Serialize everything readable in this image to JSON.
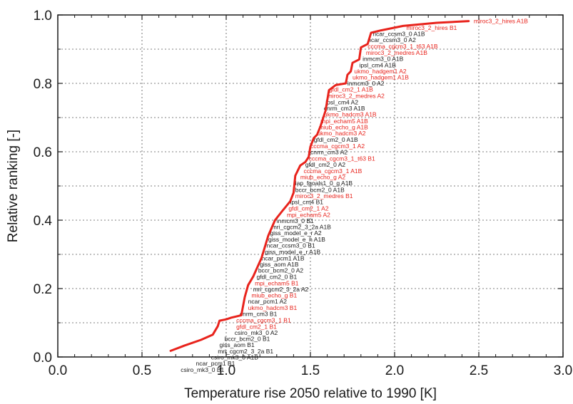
{
  "chart_data": {
    "type": "line",
    "title": "",
    "xlabel": "Temperature rise 2050 relative to 1990 [K]",
    "ylabel": "Relative ranking [-]",
    "xlim": [
      0.0,
      3.0
    ],
    "ylim": [
      0.0,
      1.0
    ],
    "x_ticks": [
      "0.0",
      "0.5",
      "1.0",
      "1.5",
      "2.0",
      "2.5",
      "3.0"
    ],
    "y_ticks": [
      "0.0",
      "0.2",
      "0.4",
      "0.6",
      "0.8",
      "1.0"
    ],
    "grid": true,
    "line_color": "#e8231c",
    "series": [
      {
        "values": [
          [
            0.67,
            0.018
          ],
          [
            0.75,
            0.033
          ],
          [
            0.85,
            0.05
          ],
          [
            0.92,
            0.065
          ],
          [
            0.95,
            0.09
          ],
          [
            0.96,
            0.106
          ],
          [
            1.0,
            0.11
          ],
          [
            1.03,
            0.115
          ],
          [
            1.09,
            0.122
          ],
          [
            1.11,
            0.175
          ],
          [
            1.13,
            0.21
          ],
          [
            1.16,
            0.235
          ],
          [
            1.21,
            0.29
          ],
          [
            1.25,
            0.355
          ],
          [
            1.29,
            0.4
          ],
          [
            1.33,
            0.425
          ],
          [
            1.38,
            0.455
          ],
          [
            1.4,
            0.48
          ],
          [
            1.41,
            0.53
          ],
          [
            1.44,
            0.56
          ],
          [
            1.47,
            0.57
          ],
          [
            1.49,
            0.585
          ],
          [
            1.5,
            0.615
          ],
          [
            1.52,
            0.64
          ],
          [
            1.54,
            0.65
          ],
          [
            1.56,
            0.675
          ],
          [
            1.59,
            0.72
          ],
          [
            1.61,
            0.78
          ],
          [
            1.65,
            0.795
          ],
          [
            1.71,
            0.8
          ],
          [
            1.72,
            0.825
          ],
          [
            1.74,
            0.835
          ],
          [
            1.75,
            0.86
          ],
          [
            1.79,
            0.87
          ],
          [
            1.8,
            0.905
          ],
          [
            1.84,
            0.915
          ],
          [
            1.86,
            0.948
          ],
          [
            1.92,
            0.955
          ],
          [
            2.05,
            0.968
          ],
          [
            2.25,
            0.977
          ],
          [
            2.44,
            0.982
          ]
        ]
      }
    ],
    "annotations": [
      {
        "text": "miroc3_2_hires A1B",
        "x": 2.47,
        "y": 0.982,
        "color": "#e8231c"
      },
      {
        "text": "miroc3_2_hires B1",
        "x": 2.07,
        "y": 0.963,
        "color": "#e8231c"
      },
      {
        "text": "ncar_ccsm3_0 A1B",
        "x": 1.87,
        "y": 0.945,
        "color": "#1a1a1a"
      },
      {
        "text": "ncar_ccsm3_0 A2",
        "x": 1.84,
        "y": 0.927,
        "color": "#1a1a1a"
      },
      {
        "text": "cccma_cgcm3_1_t63 A1B",
        "x": 1.84,
        "y": 0.908,
        "color": "#e8231c"
      },
      {
        "text": "miroc3_2_medres A1B",
        "x": 1.83,
        "y": 0.89,
        "color": "#e8231c"
      },
      {
        "text": "inmcm3_0 A1B",
        "x": 1.81,
        "y": 0.872,
        "color": "#1a1a1a"
      },
      {
        "text": "ipsl_cm4 A1B",
        "x": 1.79,
        "y": 0.853,
        "color": "#1a1a1a"
      },
      {
        "text": "ukmo_hadgem1 A2",
        "x": 1.76,
        "y": 0.835,
        "color": "#e8231c"
      },
      {
        "text": "ukmo_hadgem1 A1B",
        "x": 1.75,
        "y": 0.818,
        "color": "#e8231c"
      },
      {
        "text": "inmcm3_0 A2",
        "x": 1.72,
        "y": 0.8,
        "color": "#1a1a1a"
      },
      {
        "text": "gfdl_cm2_1 A1B",
        "x": 1.61,
        "y": 0.782,
        "color": "#e8231c"
      },
      {
        "text": "miroc3_2_medres A2",
        "x": 1.6,
        "y": 0.764,
        "color": "#e8231c"
      },
      {
        "text": "ipsl_cm4 A2",
        "x": 1.59,
        "y": 0.745,
        "color": "#1a1a1a"
      },
      {
        "text": "cnrm_cm3 A1B",
        "x": 1.58,
        "y": 0.727,
        "color": "#1a1a1a"
      },
      {
        "text": "ukmo_hadcm3 A1B",
        "x": 1.58,
        "y": 0.709,
        "color": "#e8231c"
      },
      {
        "text": "mpi_echam5 A1B",
        "x": 1.56,
        "y": 0.69,
        "color": "#e8231c"
      },
      {
        "text": "miub_echo_g A1B",
        "x": 1.55,
        "y": 0.672,
        "color": "#e8231c"
      },
      {
        "text": "ukmo_hadcm3 A2",
        "x": 1.54,
        "y": 0.654,
        "color": "#e8231c"
      },
      {
        "text": "gfdl_cm2_0 A1B",
        "x": 1.52,
        "y": 0.635,
        "color": "#1a1a1a"
      },
      {
        "text": "cccma_cgcm3_1 A2",
        "x": 1.5,
        "y": 0.617,
        "color": "#e8231c"
      },
      {
        "text": "cnrm_cm3 A2",
        "x": 1.5,
        "y": 0.599,
        "color": "#1a1a1a"
      },
      {
        "text": "cccma_cgcm3_1_t63 B1",
        "x": 1.49,
        "y": 0.58,
        "color": "#e8231c"
      },
      {
        "text": "gfdl_cm2_0 A2",
        "x": 1.47,
        "y": 0.562,
        "color": "#1a1a1a"
      },
      {
        "text": "cccma_cgcm3_1 A1B",
        "x": 1.46,
        "y": 0.544,
        "color": "#e8231c"
      },
      {
        "text": "miub_echo_g A2",
        "x": 1.44,
        "y": 0.526,
        "color": "#e8231c"
      },
      {
        "text": "iap_fgoals1_0_g A1B",
        "x": 1.41,
        "y": 0.508,
        "color": "#1a1a1a"
      },
      {
        "text": "bccr_bcm2_0 A1B",
        "x": 1.41,
        "y": 0.489,
        "color": "#1a1a1a"
      },
      {
        "text": "miroc3_2_medres B1",
        "x": 1.41,
        "y": 0.471,
        "color": "#e8231c"
      },
      {
        "text": "ipsl_cm4 B1",
        "x": 1.38,
        "y": 0.453,
        "color": "#1a1a1a"
      },
      {
        "text": "gfdl_cm2_1 A2",
        "x": 1.37,
        "y": 0.434,
        "color": "#e8231c"
      },
      {
        "text": "mpi_echam5 A2",
        "x": 1.36,
        "y": 0.416,
        "color": "#e8231c"
      },
      {
        "text": "inmcm3_0 B1",
        "x": 1.3,
        "y": 0.398,
        "color": "#1a1a1a"
      },
      {
        "text": "mri_cgcm2_3_2a A1B",
        "x": 1.27,
        "y": 0.38,
        "color": "#1a1a1a"
      },
      {
        "text": "giss_model_e_r A2",
        "x": 1.26,
        "y": 0.362,
        "color": "#1a1a1a"
      },
      {
        "text": "giss_model_e_h A1B",
        "x": 1.25,
        "y": 0.344,
        "color": "#1a1a1a"
      },
      {
        "text": "ncar_ccsm3_0 B1",
        "x": 1.24,
        "y": 0.326,
        "color": "#1a1a1a"
      },
      {
        "text": "giss_model_e_r A1B",
        "x": 1.23,
        "y": 0.307,
        "color": "#1a1a1a"
      },
      {
        "text": "ncar_pcm1 A1B",
        "x": 1.21,
        "y": 0.289,
        "color": "#1a1a1a"
      },
      {
        "text": "giss_aom A1B",
        "x": 1.2,
        "y": 0.271,
        "color": "#1a1a1a"
      },
      {
        "text": "bccr_bcm2_0 A2",
        "x": 1.19,
        "y": 0.253,
        "color": "#1a1a1a"
      },
      {
        "text": "gfdl_cm2_0 B1",
        "x": 1.18,
        "y": 0.234,
        "color": "#1a1a1a"
      },
      {
        "text": "mpi_echam5 B1",
        "x": 1.17,
        "y": 0.216,
        "color": "#e8231c"
      },
      {
        "text": "mri_cgcm2_3_2a A2",
        "x": 1.16,
        "y": 0.198,
        "color": "#1a1a1a"
      },
      {
        "text": "miub_echo_g B1",
        "x": 1.15,
        "y": 0.18,
        "color": "#e8231c"
      },
      {
        "text": "ncar_pcm1 A2",
        "x": 1.13,
        "y": 0.162,
        "color": "#1a1a1a"
      },
      {
        "text": "ukmo_hadcm3 B1",
        "x": 1.13,
        "y": 0.144,
        "color": "#e8231c"
      },
      {
        "text": "cnrm_cm3 B1",
        "x": 1.08,
        "y": 0.126,
        "color": "#1a1a1a"
      },
      {
        "text": "cccma_cgcm3_1 B1",
        "x": 1.06,
        "y": 0.107,
        "color": "#e8231c"
      },
      {
        "text": "gfdl_cm2_1 B1",
        "x": 1.06,
        "y": 0.089,
        "color": "#e8231c"
      },
      {
        "text": "csiro_mk3_0 A2",
        "x": 1.05,
        "y": 0.071,
        "color": "#1a1a1a"
      },
      {
        "text": "bccr_bcm2_0 B1",
        "x": 0.99,
        "y": 0.053,
        "color": "#1a1a1a"
      },
      {
        "text": "giss_aom B1",
        "x": 0.96,
        "y": 0.035,
        "color": "#1a1a1a"
      },
      {
        "text": "mri_cgcm2_3_2a B1",
        "x": 0.95,
        "y": 0.017,
        "color": "#1a1a1a"
      },
      {
        "text": "csiro_mk3_0 A1B",
        "x": 0.91,
        "y": -0.001,
        "color": "#1a1a1a"
      },
      {
        "text": "ncar_pcm1 B1",
        "x": 0.82,
        "y": -0.019,
        "color": "#1a1a1a"
      },
      {
        "text": "csiro_mk3_0 B1",
        "x": 0.73,
        "y": -0.037,
        "color": "#1a1a1a"
      }
    ]
  }
}
